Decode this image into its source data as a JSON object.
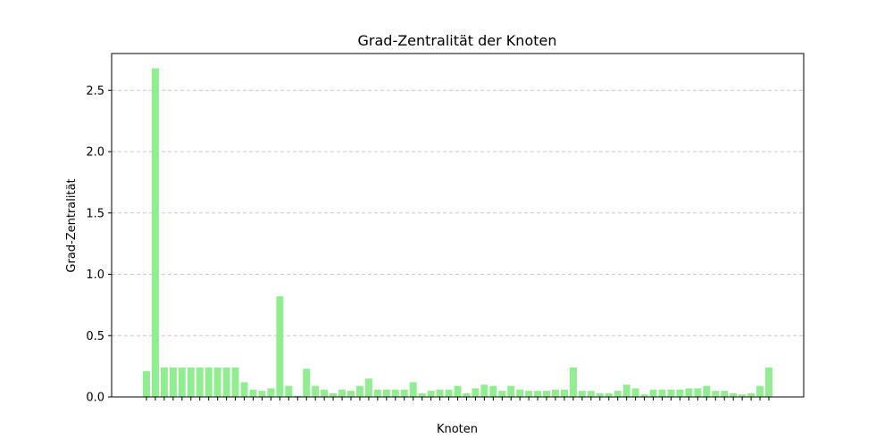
{
  "chart_data": {
    "type": "bar",
    "title": "Grad-Zentralität der Knoten",
    "xlabel": "Knoten",
    "ylabel": "Grad-Zentralität",
    "ylim": [
      0,
      2.8
    ],
    "yticks": [
      "0.0",
      "0.5",
      "1.0",
      "1.5",
      "2.0",
      "2.5"
    ],
    "grid": "y-dashed",
    "bar_color": "#90ee90",
    "values": [
      0.21,
      2.68,
      0.24,
      0.24,
      0.24,
      0.24,
      0.24,
      0.24,
      0.24,
      0.24,
      0.24,
      0.12,
      0.06,
      0.05,
      0.07,
      0.82,
      0.09,
      0.01,
      0.23,
      0.09,
      0.06,
      0.03,
      0.06,
      0.05,
      0.09,
      0.15,
      0.06,
      0.06,
      0.06,
      0.06,
      0.12,
      0.03,
      0.05,
      0.06,
      0.06,
      0.09,
      0.03,
      0.07,
      0.1,
      0.09,
      0.05,
      0.09,
      0.06,
      0.05,
      0.05,
      0.05,
      0.06,
      0.06,
      0.24,
      0.05,
      0.05,
      0.03,
      0.03,
      0.05,
      0.1,
      0.07,
      0.02,
      0.06,
      0.06,
      0.06,
      0.06,
      0.07,
      0.07,
      0.09,
      0.05,
      0.05,
      0.03,
      0.02,
      0.03,
      0.09,
      0.24
    ]
  }
}
